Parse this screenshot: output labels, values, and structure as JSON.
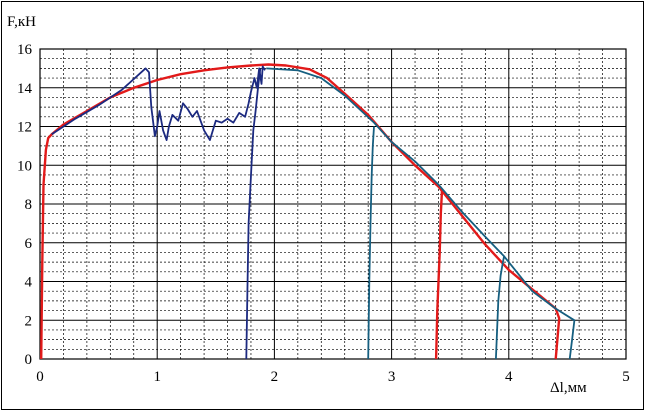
{
  "chart_data": {
    "type": "line",
    "ylabel": "F,кН",
    "xlabel_symbol": "Δl",
    "xlabel_unit": ",мм",
    "xlim": [
      0,
      5
    ],
    "ylim": [
      0,
      16
    ],
    "x_ticks": [
      "0",
      "1",
      "2",
      "3",
      "4",
      "5"
    ],
    "y_ticks": [
      "0",
      "2",
      "4",
      "6",
      "8",
      "10",
      "12",
      "14",
      "16"
    ],
    "grid": "major solid, minor dashed",
    "legend": "none",
    "colors": {
      "red": "#e21a1a",
      "navy": "#1c2a80",
      "teal": "#165f80"
    },
    "series": [
      {
        "color": "red",
        "x": [
          0.01,
          0.02,
          0.03,
          0.05,
          0.07,
          0.1,
          0.2,
          0.4,
          0.6,
          0.8,
          1.0,
          1.2,
          1.4,
          1.6,
          1.8,
          1.95,
          2.1,
          2.3,
          2.45,
          2.6,
          2.8,
          3.0,
          3.2,
          3.4,
          3.6,
          3.8,
          4.0,
          4.2,
          4.4,
          4.43,
          4.4
        ],
        "y": [
          0,
          5,
          9,
          10.8,
          11.4,
          11.6,
          12.1,
          12.8,
          13.5,
          14.0,
          14.4,
          14.7,
          14.9,
          15.05,
          15.15,
          15.2,
          15.15,
          14.95,
          14.5,
          13.7,
          12.6,
          11.2,
          10.0,
          8.9,
          7.4,
          5.9,
          4.6,
          3.6,
          2.6,
          2.1,
          0
        ]
      },
      {
        "color": "red",
        "x": [
          3.38,
          3.39,
          3.41,
          3.42,
          3.43
        ],
        "y": [
          0,
          2.5,
          5.5,
          7.5,
          8.7
        ]
      },
      {
        "color": "navy",
        "x": [
          0.1,
          0.3,
          0.5,
          0.7,
          0.9,
          0.93,
          0.95,
          0.98,
          1.0,
          1.02,
          1.05,
          1.08,
          1.1,
          1.13,
          1.18,
          1.22,
          1.26,
          1.3,
          1.34,
          1.4,
          1.45,
          1.5,
          1.55,
          1.6,
          1.65,
          1.7,
          1.75,
          1.78,
          1.8,
          1.83,
          1.85,
          1.87,
          1.89,
          1.9,
          1.92
        ],
        "y": [
          11.6,
          12.4,
          13.1,
          13.9,
          15.0,
          14.8,
          13.0,
          11.5,
          12.0,
          12.8,
          11.8,
          11.3,
          12.0,
          12.6,
          12.3,
          13.2,
          12.9,
          12.5,
          12.8,
          11.8,
          11.3,
          12.3,
          12.2,
          12.4,
          12.2,
          12.7,
          12.5,
          13.2,
          13.8,
          14.5,
          14.0,
          15.0,
          14.2,
          15.1,
          14.9
        ]
      },
      {
        "color": "navy",
        "x": [
          1.76,
          1.77,
          1.78,
          1.8,
          1.82,
          1.84,
          1.86,
          1.88
        ],
        "y": [
          0,
          3.5,
          7.0,
          9.5,
          11.8,
          12.8,
          14.0,
          15.0
        ]
      },
      {
        "color": "teal",
        "x": [
          1.93,
          2.2,
          2.4,
          2.6,
          2.85,
          3.0,
          3.2,
          3.4,
          3.6,
          3.8,
          3.96,
          4.2,
          4.4,
          4.56,
          4.54,
          4.52
        ],
        "y": [
          15.0,
          14.9,
          14.5,
          13.6,
          12.2,
          11.2,
          10.2,
          9.0,
          7.6,
          6.3,
          5.3,
          3.5,
          2.6,
          2.0,
          1.0,
          0
        ]
      },
      {
        "color": "teal",
        "x": [
          2.8,
          2.81,
          2.82,
          2.83,
          2.84,
          2.85
        ],
        "y": [
          0,
          4.0,
          7.0,
          9.5,
          11.0,
          12.0
        ]
      },
      {
        "color": "teal",
        "x": [
          3.89,
          3.9,
          3.91,
          3.93,
          3.95,
          3.96
        ],
        "y": [
          0,
          1.5,
          3.0,
          4.3,
          5.0,
          5.3
        ]
      }
    ]
  }
}
